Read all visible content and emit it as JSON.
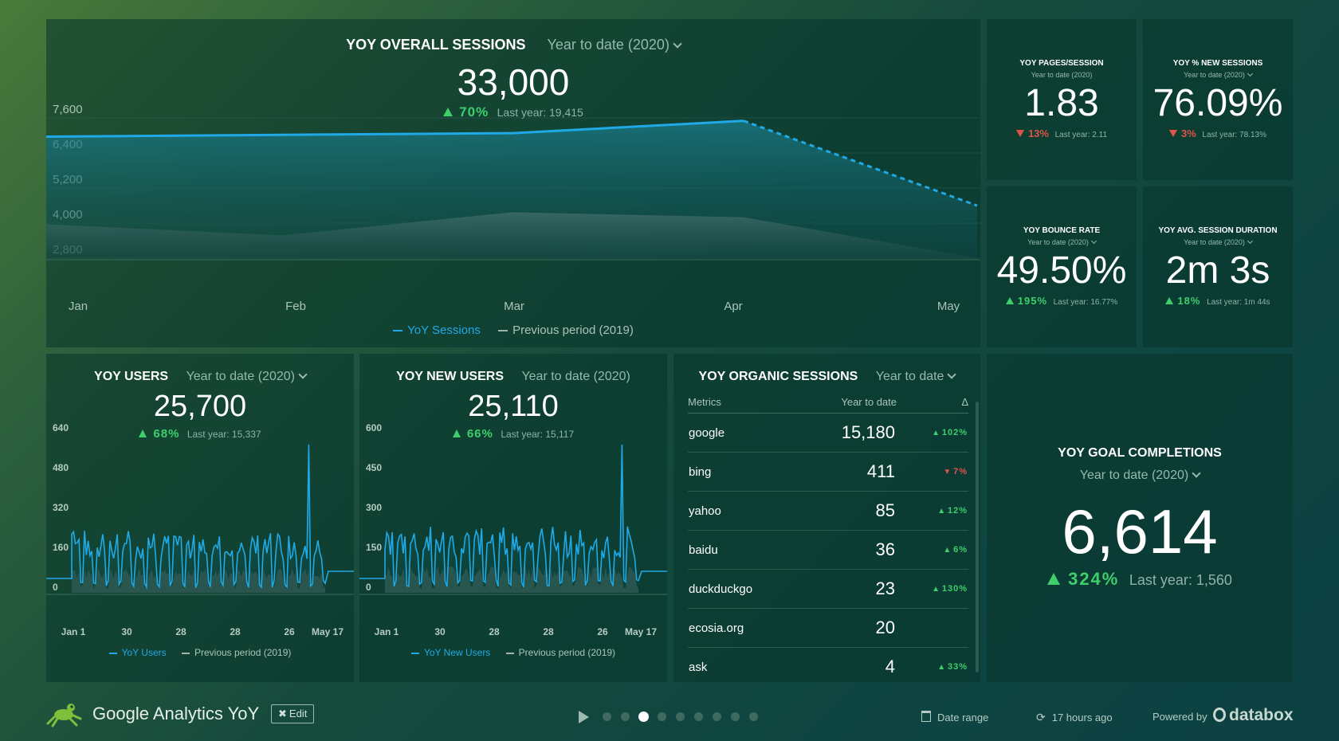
{
  "colors": {
    "accent_blue": "#1fa9e6",
    "up_green": "#3ecf6a",
    "down_red": "#e0524a",
    "prev_gray": "#7f9f94"
  },
  "main_chart": {
    "title": "YOY OVERALL SESSIONS",
    "range": "Year to date (2020)",
    "value": "33,000",
    "delta": "70%",
    "last_year": "Last year: 19,415",
    "legend_current": "YoY Sessions",
    "legend_previous": "Previous period (2019)"
  },
  "kpis": {
    "pages_session": {
      "title": "YOY PAGES/SESSION",
      "range": "Year to date (2020)",
      "value": "1.83",
      "delta": "13%",
      "direction": "down",
      "last_year": "Last year: 2.11"
    },
    "new_sessions": {
      "title": "YOY % NEW SESSIONS",
      "range": "Year to date (2020)",
      "value": "76.09%",
      "delta": "3%",
      "direction": "down",
      "last_year": "Last year: 78.13%"
    },
    "bounce_rate": {
      "title": "YOY BOUNCE RATE",
      "range": "Year to date (2020)",
      "value": "49.50%",
      "delta": "195%",
      "direction": "up",
      "last_year": "Last year: 16.77%"
    },
    "avg_duration": {
      "title": "YOY AVG. SESSION DURATION",
      "range": "Year to date (2020)",
      "value": "2m 3s",
      "delta": "18%",
      "direction": "up",
      "last_year": "Last year: 1m 44s"
    }
  },
  "users": {
    "title": "YOY USERS",
    "range": "Year to date (2020)",
    "value": "25,700",
    "delta": "68%",
    "last_year": "Last year: 15,337",
    "legend_current": "YoY Users",
    "legend_previous": "Previous period (2019)"
  },
  "new_users": {
    "title": "YOY NEW USERS",
    "range": "Year to date (2020)",
    "value": "25,110",
    "delta": "66%",
    "last_year": "Last year: 15,117",
    "legend_current": "YoY New Users",
    "legend_previous": "Previous period (2019)"
  },
  "organic": {
    "title": "YOY ORGANIC SESSIONS",
    "range": "Year to date",
    "headers": {
      "metric": "Metrics",
      "value": "Year to date",
      "delta": "Δ"
    },
    "rows": [
      {
        "name": "google",
        "value": "15,180",
        "delta": "102%",
        "direction": "up"
      },
      {
        "name": "bing",
        "value": "411",
        "delta": "7%",
        "direction": "down"
      },
      {
        "name": "yahoo",
        "value": "85",
        "delta": "12%",
        "direction": "up"
      },
      {
        "name": "baidu",
        "value": "36",
        "delta": "6%",
        "direction": "up"
      },
      {
        "name": "duckduckgo",
        "value": "23",
        "delta": "130%",
        "direction": "up"
      },
      {
        "name": "ecosia.org",
        "value": "20",
        "delta": "",
        "direction": "none"
      },
      {
        "name": "ask",
        "value": "4",
        "delta": "33%",
        "direction": "up"
      }
    ]
  },
  "goals": {
    "title": "YOY GOAL COMPLETIONS",
    "range": "Year to date (2020)",
    "value": "6,614",
    "delta": "324%",
    "last_year": "Last year: 1,560"
  },
  "footer": {
    "dashboard_name": "Google Analytics YoY",
    "edit_label": "Edit",
    "date_range": "Date range",
    "updated": "17 hours ago",
    "powered_by": "Powered by",
    "brand": "databox",
    "page_count": 9,
    "active_page": 3
  },
  "chart_data": [
    {
      "type": "area",
      "name": "sessions",
      "categories": [
        "Jan",
        "Feb",
        "Mar",
        "Apr",
        "May"
      ],
      "series": [
        {
          "name": "YoY Sessions",
          "values": [
            6960,
            7020,
            7080,
            7500,
            4600
          ]
        },
        {
          "name": "Previous period (2019)",
          "values": [
            3960,
            3580,
            4370,
            4200,
            2800
          ]
        }
      ],
      "yticks": [
        "7,600",
        "6,400",
        "5,200",
        "4,000",
        "2,800"
      ],
      "ylim": [
        2800,
        7600
      ]
    },
    {
      "type": "line",
      "name": "users",
      "xticks": [
        "Jan 1",
        "30",
        "28",
        "28",
        "26",
        "May 17"
      ],
      "yticks": [
        "640",
        "480",
        "320",
        "160",
        "0"
      ],
      "ylim": [
        0,
        640
      ]
    },
    {
      "type": "line",
      "name": "new_users",
      "xticks": [
        "Jan 1",
        "30",
        "28",
        "28",
        "26",
        "May 17"
      ],
      "yticks": [
        "600",
        "450",
        "300",
        "150",
        "0"
      ],
      "ylim": [
        0,
        600
      ]
    }
  ]
}
